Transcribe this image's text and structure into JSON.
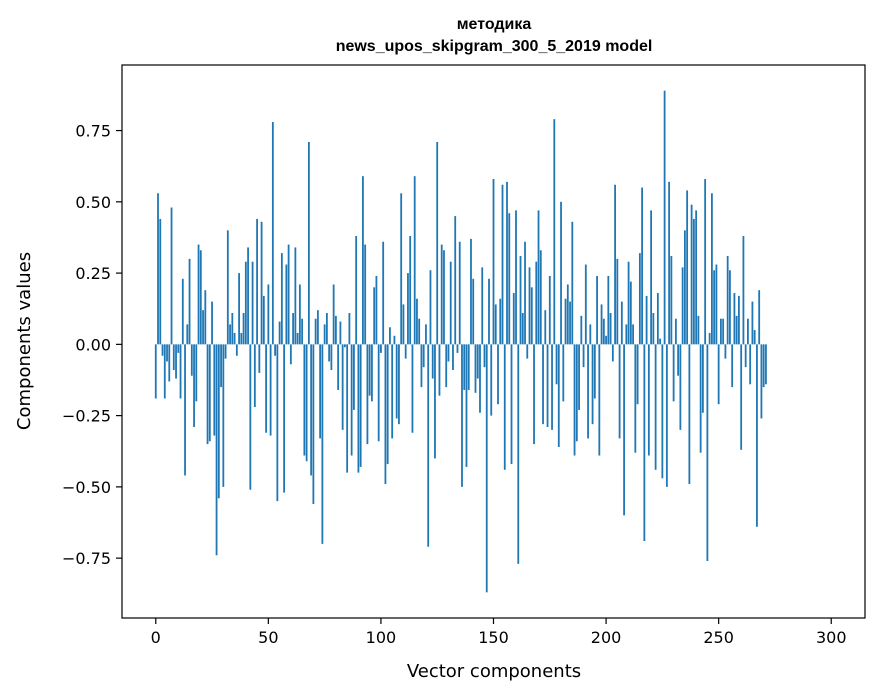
{
  "chart_data": {
    "type": "bar",
    "title_line1": "методика",
    "title_line2": "news_upos_skipgram_300_5_2019 model",
    "xlabel": "Vector components",
    "ylabel": "Components values",
    "xlim": [
      -15,
      315
    ],
    "ylim": [
      -0.96,
      0.98
    ],
    "x_ticks": [
      0,
      50,
      100,
      150,
      200,
      250,
      300
    ],
    "x_tick_labels": [
      "0",
      "50",
      "100",
      "150",
      "200",
      "250",
      "300"
    ],
    "y_ticks": [
      -0.75,
      -0.5,
      -0.25,
      0.0,
      0.25,
      0.5,
      0.75
    ],
    "y_tick_labels": [
      "−0.75",
      "−0.50",
      "−0.25",
      "0.00",
      "0.25",
      "0.50",
      "0.75"
    ],
    "bar_color": "#1f77b4",
    "values": [
      -0.19,
      0.53,
      0.44,
      -0.04,
      -0.19,
      -0.06,
      -0.13,
      0.48,
      -0.09,
      -0.12,
      -0.03,
      -0.19,
      0.23,
      -0.46,
      0.07,
      0.3,
      -0.11,
      -0.29,
      -0.2,
      0.35,
      0.33,
      0.12,
      0.19,
      -0.35,
      -0.34,
      0.15,
      -0.32,
      -0.74,
      -0.54,
      -0.15,
      -0.5,
      -0.05,
      0.4,
      0.07,
      0.11,
      0.04,
      -0.04,
      0.25,
      0.04,
      0.11,
      0.29,
      0.34,
      -0.51,
      0.29,
      -0.22,
      0.44,
      -0.1,
      0.43,
      0.17,
      -0.31,
      0.21,
      -0.32,
      0.78,
      -0.04,
      -0.55,
      0.08,
      0.32,
      -0.52,
      0.28,
      0.35,
      -0.07,
      0.11,
      0.34,
      0.04,
      0.21,
      0.09,
      -0.39,
      -0.41,
      0.71,
      -0.46,
      -0.56,
      0.09,
      0.12,
      -0.33,
      -0.7,
      0.07,
      0.11,
      -0.06,
      -0.09,
      0.21,
      0.1,
      -0.16,
      0.08,
      -0.3,
      -0.01,
      -0.45,
      0.11,
      -0.39,
      -0.23,
      0.38,
      -0.45,
      -0.43,
      0.59,
      0.35,
      -0.35,
      -0.18,
      -0.2,
      0.2,
      0.24,
      -0.34,
      -0.03,
      0.36,
      -0.49,
      -0.42,
      0.06,
      -0.33,
      0.03,
      -0.26,
      -0.28,
      0.53,
      0.14,
      -0.05,
      0.25,
      0.38,
      -0.31,
      0.59,
      0.16,
      0.09,
      -0.15,
      -0.08,
      0.07,
      -0.71,
      0.26,
      -0.12,
      -0.4,
      0.71,
      -0.18,
      0.35,
      0.33,
      -0.15,
      -0.06,
      0.29,
      -0.09,
      0.45,
      -0.03,
      0.36,
      -0.5,
      -0.16,
      -0.43,
      -0.16,
      0.37,
      0.23,
      -0.17,
      -0.12,
      -0.24,
      0.27,
      -0.08,
      -0.87,
      0.23,
      -0.25,
      0.58,
      0.14,
      -0.21,
      0.16,
      0.56,
      -0.44,
      0.57,
      0.46,
      -0.42,
      0.18,
      0.47,
      -0.77,
      0.31,
      0.11,
      0.36,
      -0.05,
      0.27,
      0.2,
      -0.35,
      0.29,
      0.47,
      0.33,
      -0.28,
      0.12,
      -0.29,
      0.24,
      -0.3,
      0.79,
      -0.14,
      -0.36,
      0.5,
      -0.2,
      0.16,
      0.21,
      0.15,
      0.43,
      -0.39,
      -0.34,
      -0.23,
      0.1,
      -0.08,
      0.28,
      -0.33,
      0.07,
      -0.28,
      -0.19,
      0.24,
      -0.39,
      0.14,
      0.09,
      0.03,
      0.24,
      0.11,
      -0.06,
      0.56,
      0.3,
      -0.33,
      0.15,
      -0.6,
      0.07,
      0.29,
      0.22,
      0.07,
      -0.38,
      -0.21,
      0.32,
      0.55,
      -0.69,
      0.17,
      -0.39,
      0.47,
      0.11,
      -0.44,
      0.18,
      0.02,
      -0.47,
      0.89,
      -0.5,
      0.57,
      0.31,
      -0.2,
      0.09,
      -0.11,
      -0.3,
      0.27,
      0.4,
      0.54,
      -0.49,
      0.49,
      0.44,
      0.47,
      0.1,
      -0.38,
      -0.24,
      0.58,
      -0.76,
      0.04,
      0.53,
      0.26,
      0.28,
      -0.21,
      0.09,
      0.09,
      -0.05,
      0.31,
      0.26,
      -0.15,
      0.18,
      0.1,
      0.17,
      -0.37,
      0.38,
      -0.08,
      0.09,
      -0.14,
      0.15,
      0.05,
      -0.64,
      0.19,
      -0.26,
      -0.15,
      -0.14
    ]
  }
}
